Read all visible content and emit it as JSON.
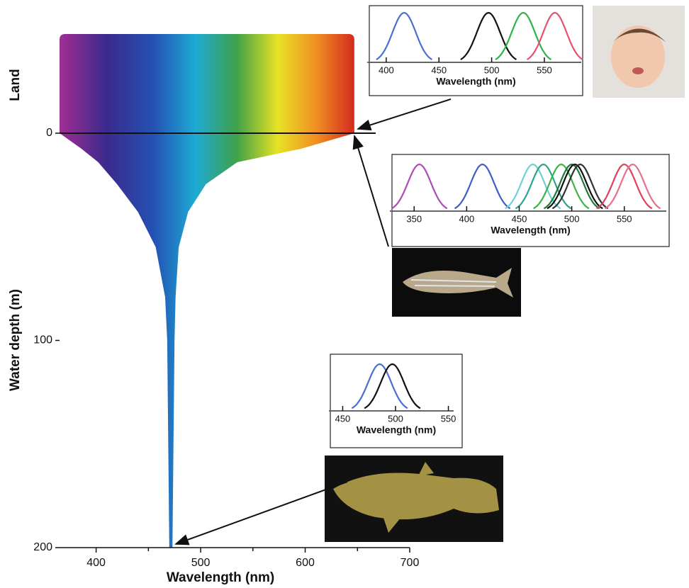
{
  "chart_data": [
    {
      "type": "spectrum",
      "xlabel": "Wavelength (nm)",
      "ylabel": "Water depth (m)",
      "land_label": "Land",
      "xlim": [
        365,
        700
      ],
      "xticks": [
        400,
        500,
        600,
        700
      ],
      "xminorticks": [
        450,
        550,
        650
      ],
      "ylim": [
        0,
        200
      ],
      "yticks": [
        0,
        100,
        200
      ],
      "depth": [
        0,
        7.5,
        14,
        24.6,
        38,
        55,
        79,
        100,
        150,
        200
      ],
      "min_wavelength": [
        365,
        386,
        402,
        420,
        440,
        457,
        466,
        468,
        469,
        470
      ],
      "max_wavelength": [
        647,
        596,
        535,
        505,
        488,
        479,
        476,
        475,
        474,
        473
      ]
    },
    {
      "type": "sensitivity",
      "xlabel": "Wavelength (nm)",
      "xlim": [
        390,
        585
      ],
      "xticks": [
        400,
        450,
        500,
        550
      ],
      "peaks": [
        417,
        497,
        530,
        560
      ],
      "colors": [
        "#4a6fd0",
        "#111111",
        "#2db34a",
        "#e8506e"
      ]
    },
    {
      "type": "sensitivity",
      "xlabel": "Wavelength (nm)",
      "xlim": [
        335,
        590
      ],
      "xticks": [
        350,
        400,
        450,
        500,
        550
      ],
      "peaks": [
        355,
        415,
        463,
        473,
        490,
        500,
        503,
        508,
        550,
        558
      ],
      "colors": [
        "#b04bb5",
        "#3d5fc8",
        "#6fd0d8",
        "#2aa58f",
        "#3db34a",
        "#1e7a3a",
        "#111111",
        "#333333",
        "#e0405a",
        "#e8708a"
      ]
    },
    {
      "type": "sensitivity",
      "xlabel": "Wavelength (nm)",
      "xlim": [
        445,
        555
      ],
      "xticks": [
        450,
        500,
        550
      ],
      "peaks": [
        485,
        497
      ],
      "colors": [
        "#4a6fd0",
        "#111111"
      ]
    }
  ]
}
